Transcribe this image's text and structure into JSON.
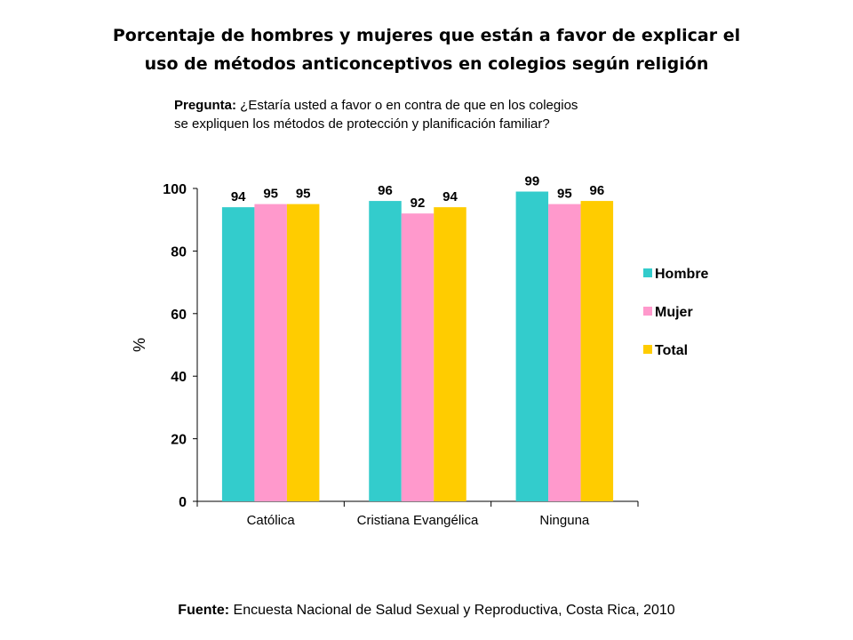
{
  "title_line1": "Porcentaje  de hombres y mujeres que están a favor de  explicar el",
  "title_line2": "uso de métodos anticonceptivos en colegios según religión",
  "question_lead": "Pregunta:",
  "question_line1": " ¿Estaría usted a favor o en contra de que en los colegios",
  "question_line2": "se expliquen los métodos de protección y planificación familiar?",
  "source_lead": "Fuente:",
  "source_text": " Encuesta Nacional de Salud Sexual y Reproductiva, Costa Rica, 2010",
  "chart_data": {
    "type": "bar",
    "categories": [
      "Católica",
      "Cristiana Evangélica",
      "Ninguna"
    ],
    "series": [
      {
        "name": "Hombre",
        "values": [
          94,
          96,
          99
        ],
        "color": "#33CCCC"
      },
      {
        "name": "Mujer",
        "values": [
          95,
          92,
          95
        ],
        "color": "#FF99CC"
      },
      {
        "name": "Total",
        "values": [
          95,
          94,
          96
        ],
        "color": "#FFCC00"
      }
    ],
    "ylabel": "%",
    "ylim": [
      0,
      100
    ],
    "yticks": [
      0,
      20,
      40,
      60,
      80,
      100
    ],
    "grid": false,
    "legend": "right"
  }
}
